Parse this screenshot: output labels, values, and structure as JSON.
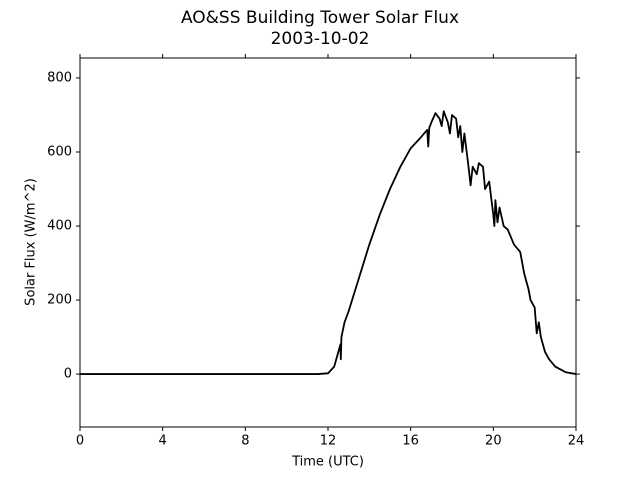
{
  "chart_data": {
    "type": "line",
    "title": "AO&SS Building Tower Solar Flux",
    "subtitle": "2003-10-02",
    "x_label": "Time (UTC)",
    "y_label": "Solar Flux (W/m^2)",
    "xlim": [
      0,
      24
    ],
    "xticks": [
      0,
      4,
      8,
      12,
      16,
      20,
      24
    ],
    "ylim": [
      -143,
      854
    ],
    "yticks": [
      0,
      200,
      400,
      600,
      800
    ],
    "series": [
      {
        "color": "#000000",
        "x": [
          0,
          11.5,
          12,
          12.3,
          12.6,
          12.62,
          12.65,
          12.8,
          13,
          13.5,
          14,
          14.5,
          15,
          15.5,
          16,
          16.5,
          16.8,
          16.85,
          16.9,
          17,
          17.2,
          17.4,
          17.5,
          17.6,
          17.8,
          17.9,
          18,
          18.2,
          18.3,
          18.4,
          18.5,
          18.6,
          18.8,
          18.9,
          19,
          19.2,
          19.3,
          19.5,
          19.6,
          19.8,
          20,
          20.05,
          20.1,
          20.2,
          20.3,
          20.5,
          20.7,
          21,
          21.3,
          21.5,
          21.7,
          21.8,
          22,
          22.1,
          22.2,
          22.3,
          22.5,
          22.7,
          23,
          23.5,
          24
        ],
        "values": [
          0,
          0,
          2,
          20,
          80,
          40,
          100,
          140,
          170,
          260,
          350,
          430,
          500,
          560,
          610,
          640,
          660,
          615,
          665,
          680,
          705,
          690,
          670,
          710,
          680,
          650,
          700,
          690,
          640,
          670,
          600,
          650,
          560,
          510,
          560,
          540,
          570,
          560,
          500,
          520,
          430,
          400,
          470,
          410,
          450,
          400,
          390,
          350,
          330,
          270,
          230,
          200,
          180,
          110,
          140,
          100,
          60,
          40,
          20,
          5,
          0
        ]
      }
    ]
  }
}
